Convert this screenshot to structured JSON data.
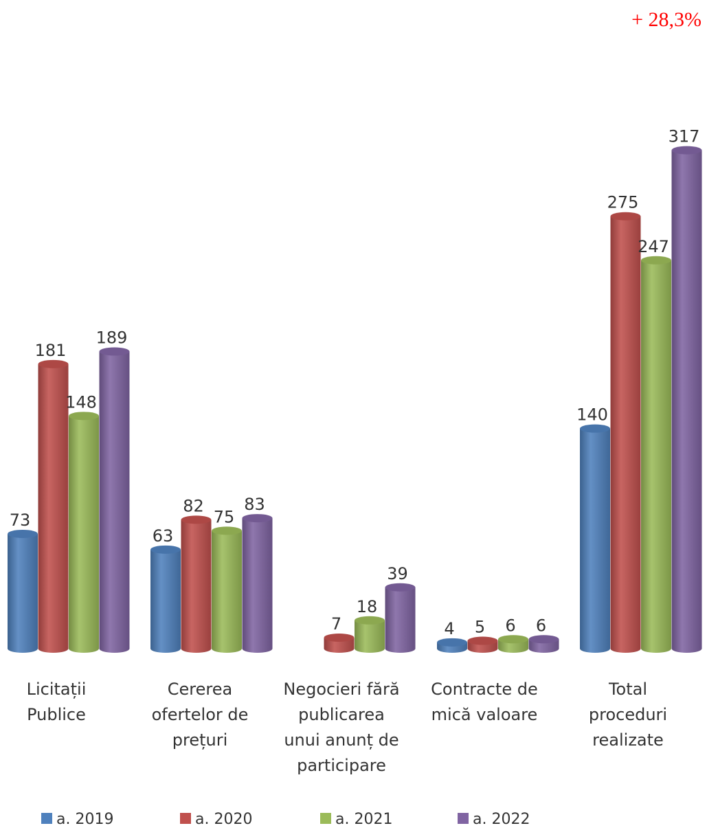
{
  "annotation": "+ 28,3%",
  "colors": {
    "a. 2019": "#4f81bd",
    "a. 2020": "#c0504d",
    "a. 2021": "#9bbb59",
    "a. 2022": "#8064a2"
  },
  "chart_data": {
    "type": "bar",
    "title": "",
    "xlabel": "",
    "ylabel": "",
    "ylim": [
      0,
      340
    ],
    "grid": false,
    "legend_position": "bottom",
    "categories": [
      [
        "Licitații",
        "Publice"
      ],
      [
        "Cererea",
        "ofertelor de",
        "prețuri"
      ],
      [
        "Negocieri fără",
        "publicarea",
        "unui anunț de",
        "participare"
      ],
      [
        "Contracte de",
        "mică valoare"
      ],
      [
        "Total",
        "proceduri",
        "realizate"
      ]
    ],
    "series": [
      {
        "name": "a. 2019",
        "values": [
          73,
          63,
          null,
          4,
          140
        ]
      },
      {
        "name": "a. 2020",
        "values": [
          181,
          82,
          7,
          5,
          275
        ]
      },
      {
        "name": "a. 2021",
        "values": [
          148,
          75,
          18,
          6,
          247
        ]
      },
      {
        "name": "a. 2022",
        "values": [
          189,
          83,
          39,
          6,
          317
        ]
      }
    ]
  }
}
